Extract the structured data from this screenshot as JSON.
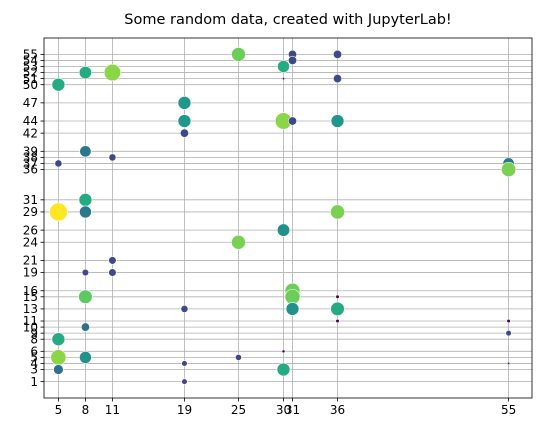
{
  "chart_data": {
    "type": "scatter",
    "title": "Some random data, created with JupyterLab!",
    "xlabel": "",
    "ylabel": "",
    "grid": true,
    "colormap": "viridis",
    "xticks": [
      5,
      8,
      11,
      19,
      25,
      30,
      31,
      36,
      55
    ],
    "yticks": [
      1,
      3,
      4,
      5,
      6,
      8,
      9,
      10,
      11,
      13,
      15,
      16,
      19,
      21,
      24,
      26,
      29,
      31,
      36,
      37,
      38,
      39,
      42,
      44,
      47,
      50,
      51,
      52,
      53,
      54,
      55
    ],
    "xlim": [
      3.4,
      57.6
    ],
    "ylim": [
      -1.7,
      57.7
    ],
    "points": [
      {
        "x": 25,
        "y": 55,
        "size": 60,
        "color": "#6ccd5a"
      },
      {
        "x": 31,
        "y": 55,
        "size": 22,
        "color": "#3e4989"
      },
      {
        "x": 36,
        "y": 55,
        "size": 22,
        "color": "#3e4989"
      },
      {
        "x": 31,
        "y": 54,
        "size": 22,
        "color": "#3e4989"
      },
      {
        "x": 30,
        "y": 53,
        "size": 45,
        "color": "#25ab82"
      },
      {
        "x": 8,
        "y": 52,
        "size": 48,
        "color": "#25ab82"
      },
      {
        "x": 11,
        "y": 52,
        "size": 85,
        "color": "#8bd646"
      },
      {
        "x": 30,
        "y": 51,
        "size": 2,
        "color": "#440154"
      },
      {
        "x": 36,
        "y": 51,
        "size": 22,
        "color": "#3e4989"
      },
      {
        "x": 5,
        "y": 50,
        "size": 52,
        "color": "#25ab82"
      },
      {
        "x": 19,
        "y": 47,
        "size": 52,
        "color": "#1f988b"
      },
      {
        "x": 19,
        "y": 44,
        "size": 52,
        "color": "#1f988b"
      },
      {
        "x": 30,
        "y": 44,
        "size": 85,
        "color": "#8bd646"
      },
      {
        "x": 31,
        "y": 44,
        "size": 22,
        "color": "#3e4989"
      },
      {
        "x": 36,
        "y": 44,
        "size": 52,
        "color": "#1f988b"
      },
      {
        "x": 19,
        "y": 42,
        "size": 22,
        "color": "#3e4989"
      },
      {
        "x": 8,
        "y": 39,
        "size": 40,
        "color": "#2a788e"
      },
      {
        "x": 11,
        "y": 38,
        "size": 16,
        "color": "#3e4989"
      },
      {
        "x": 5,
        "y": 37,
        "size": 16,
        "color": "#3e4989"
      },
      {
        "x": 55,
        "y": 37,
        "size": 40,
        "color": "#2a788e"
      },
      {
        "x": 55,
        "y": 36,
        "size": 65,
        "color": "#7ad151"
      },
      {
        "x": 8,
        "y": 31,
        "size": 52,
        "color": "#25ab82"
      },
      {
        "x": 5,
        "y": 29,
        "size": 100,
        "color": "#fde725"
      },
      {
        "x": 8,
        "y": 29,
        "size": 45,
        "color": "#2a788e"
      },
      {
        "x": 36,
        "y": 29,
        "size": 62,
        "color": "#7ad151"
      },
      {
        "x": 30,
        "y": 26,
        "size": 48,
        "color": "#21918c"
      },
      {
        "x": 25,
        "y": 24,
        "size": 62,
        "color": "#7ad151"
      },
      {
        "x": 11,
        "y": 21,
        "size": 18,
        "color": "#3e4989"
      },
      {
        "x": 8,
        "y": 19,
        "size": 14,
        "color": "#3e4989"
      },
      {
        "x": 11,
        "y": 19,
        "size": 18,
        "color": "#3e4989"
      },
      {
        "x": 31,
        "y": 16,
        "size": 70,
        "color": "#6ccd5a"
      },
      {
        "x": 8,
        "y": 15,
        "size": 58,
        "color": "#5ec962"
      },
      {
        "x": 31,
        "y": 15,
        "size": 70,
        "color": "#6ccd5a"
      },
      {
        "x": 36,
        "y": 15,
        "size": 4,
        "color": "#440154"
      },
      {
        "x": 19,
        "y": 13,
        "size": 16,
        "color": "#3e4989"
      },
      {
        "x": 31,
        "y": 13,
        "size": 52,
        "color": "#21918c"
      },
      {
        "x": 36,
        "y": 13,
        "size": 58,
        "color": "#25ab82"
      },
      {
        "x": 36,
        "y": 11,
        "size": 4,
        "color": "#440154"
      },
      {
        "x": 55,
        "y": 11,
        "size": 4,
        "color": "#440154"
      },
      {
        "x": 8,
        "y": 10,
        "size": 22,
        "color": "#2c728e"
      },
      {
        "x": 55,
        "y": 9,
        "size": 10,
        "color": "#3e4989"
      },
      {
        "x": 5,
        "y": 8,
        "size": 52,
        "color": "#25ab82"
      },
      {
        "x": 30,
        "y": 6,
        "size": 3,
        "color": "#440154"
      },
      {
        "x": 5,
        "y": 5,
        "size": 72,
        "color": "#8bd646"
      },
      {
        "x": 8,
        "y": 5,
        "size": 45,
        "color": "#21918c"
      },
      {
        "x": 25,
        "y": 5,
        "size": 12,
        "color": "#3e4989"
      },
      {
        "x": 19,
        "y": 4,
        "size": 10,
        "color": "#3e4989"
      },
      {
        "x": 55,
        "y": 4,
        "size": 2,
        "color": "#440154"
      },
      {
        "x": 5,
        "y": 3,
        "size": 30,
        "color": "#2c728e"
      },
      {
        "x": 30,
        "y": 3,
        "size": 52,
        "color": "#25ab82"
      },
      {
        "x": 19,
        "y": 1,
        "size": 10,
        "color": "#3e4989"
      }
    ]
  }
}
